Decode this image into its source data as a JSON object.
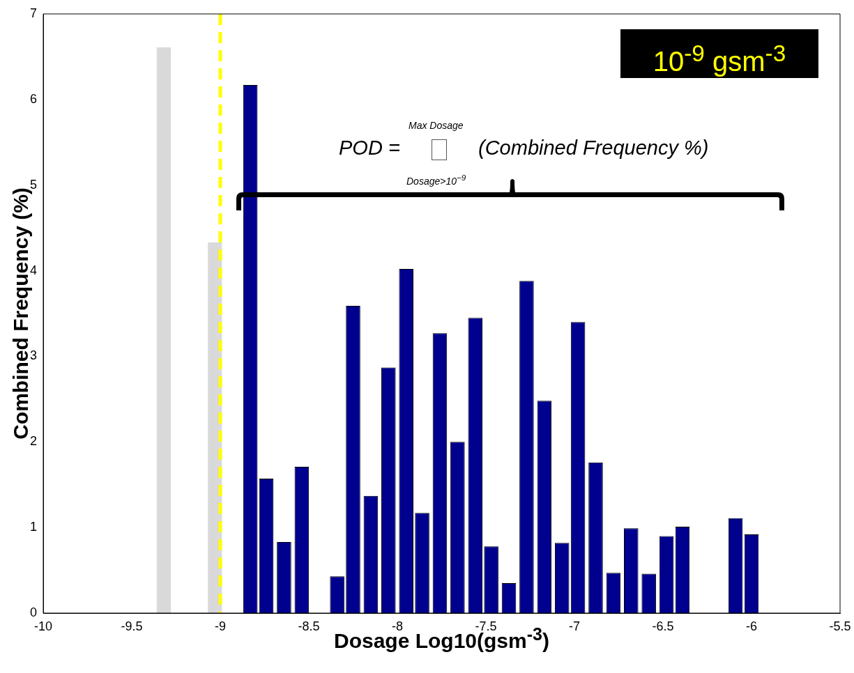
{
  "chart_data": {
    "type": "bar",
    "xlabel": "Dosage Log10(gsm$^{-3}$)",
    "ylabel": "Combined Frequency (%)",
    "x": [
      -9.32,
      -9.03,
      -8.83,
      -8.74,
      -8.64,
      -8.54,
      -8.34,
      -8.25,
      -8.15,
      -8.05,
      -7.95,
      -7.86,
      -7.76,
      -7.66,
      -7.56,
      -7.47,
      -7.37,
      -7.27,
      -7.17,
      -7.07,
      -6.98,
      -6.88,
      -6.78,
      -6.68,
      -6.58,
      -6.48,
      -6.39,
      -6.09,
      -6.0
    ],
    "values": [
      6.61,
      4.33,
      6.17,
      1.57,
      0.83,
      1.71,
      0.43,
      3.59,
      1.37,
      2.87,
      4.02,
      1.17,
      3.27,
      2.0,
      3.45,
      0.78,
      0.35,
      3.88,
      2.48,
      0.82,
      3.4,
      1.76,
      0.47,
      0.99,
      0.46,
      0.9,
      1.01,
      1.11,
      0.92
    ],
    "colors": [
      "#d9d9d9",
      "#d9d9d9",
      "#00008f",
      "#00008f",
      "#00008f",
      "#00008f",
      "#00008f",
      "#00008f",
      "#00008f",
      "#00008f",
      "#00008f",
      "#00008f",
      "#00008f",
      "#00008f",
      "#00008f",
      "#00008f",
      "#00008f",
      "#00008f",
      "#00008f",
      "#00008f",
      "#00008f",
      "#00008f",
      "#00008f",
      "#00008f",
      "#00008f",
      "#00008f",
      "#00008f",
      "#00008f",
      "#00008f"
    ],
    "xlim": [
      -10,
      -5.5
    ],
    "xticks": [
      -10,
      -9.5,
      -9,
      -8.5,
      -8,
      -7.5,
      -7,
      -6.5,
      -6,
      -5.5
    ],
    "ylim": [
      0,
      7
    ],
    "yticks": [
      0,
      1,
      2,
      3,
      4,
      5,
      6,
      7
    ],
    "grid": false,
    "legend": false,
    "ref_lines": [
      {
        "axis": "x",
        "value": -9,
        "color": "#ffff00",
        "line_style": "dashed"
      }
    ],
    "annotations": [
      "10$^{-9}$ gsm$^{-3}$",
      "POD =",
      "Max Dosage",
      "Dosage>10$^{−9}$",
      "(Combined Frequency %)"
    ]
  }
}
